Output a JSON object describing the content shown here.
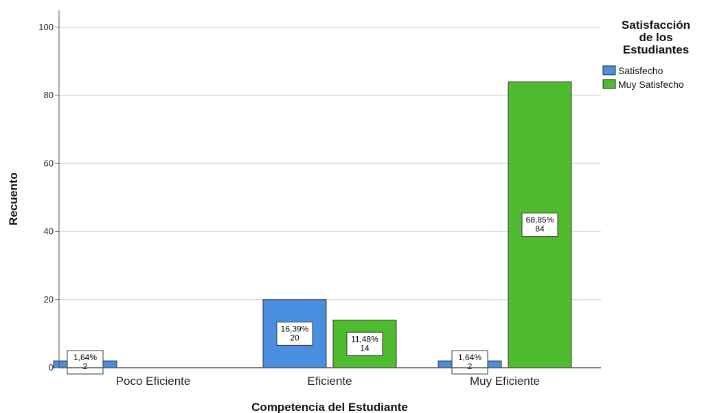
{
  "chart_data": {
    "type": "bar",
    "categories": [
      "Poco Eficiente",
      "Eficiente",
      "Muy Eficiente"
    ],
    "series": [
      {
        "name": "Satisfecho",
        "color": "#4a8fdf",
        "values": [
          2,
          20,
          2
        ],
        "percents": [
          "1,64%",
          "16,39%",
          "1,64%"
        ]
      },
      {
        "name": "Muy Satisfecho",
        "color": "#4fbb2f",
        "values": [
          0,
          14,
          84
        ],
        "percents": [
          "",
          "11,48%",
          "68,85%"
        ]
      }
    ],
    "xlabel": "Competencia del Estudiante",
    "ylabel": "Recuento",
    "ylim": [
      0,
      105
    ],
    "yticks": [
      0,
      20,
      40,
      60,
      80,
      100
    ],
    "grid": true,
    "legend": {
      "title_lines": [
        "Satisfacción",
        "de los",
        "Estudiantes"
      ],
      "placement": "top-right"
    }
  }
}
